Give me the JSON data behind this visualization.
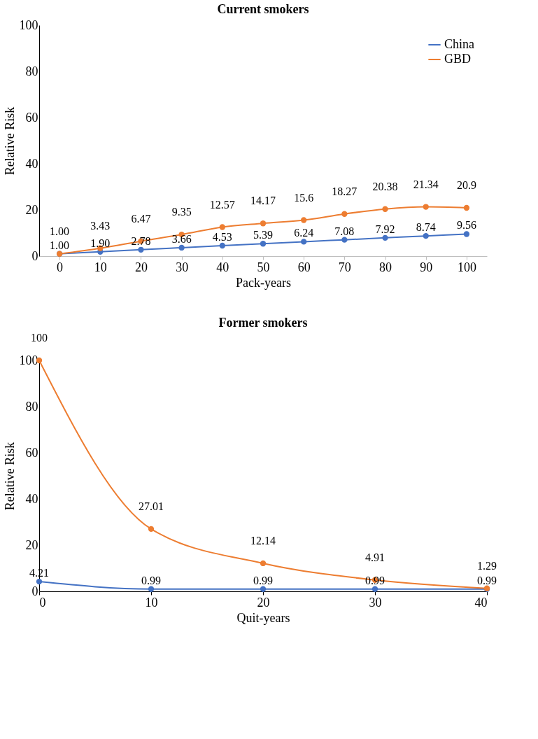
{
  "chart_data": [
    {
      "type": "line",
      "title": "Current smokers",
      "xlabel": "Pack-years",
      "ylabel": "Relative Risk",
      "categories": [
        "0",
        "10",
        "20",
        "30",
        "40",
        "50",
        "60",
        "70",
        "80",
        "90",
        "100"
      ],
      "series": [
        {
          "name": "China",
          "color": "#4472c4",
          "values": [
            1.0,
            1.9,
            2.78,
            3.66,
            4.53,
            5.39,
            6.24,
            7.08,
            7.92,
            8.74,
            9.56
          ],
          "value_labels": [
            "1.00",
            "1.90",
            "2.78",
            "3.66",
            "4.53",
            "5.39",
            "6.24",
            "7.08",
            "7.92",
            "8.74",
            "9.56"
          ]
        },
        {
          "name": "GBD",
          "color": "#ed7d31",
          "values": [
            1.0,
            3.43,
            6.47,
            9.35,
            12.57,
            14.17,
            15.6,
            18.27,
            20.38,
            21.34,
            20.9
          ],
          "value_labels": [
            "1.00",
            "3.43",
            "6.47",
            "9.35",
            "12.57",
            "14.17",
            "15.6",
            "18.27",
            "20.38",
            "21.34",
            "20.9"
          ]
        }
      ],
      "ylim": [
        0,
        100
      ],
      "yticks": [
        0,
        20,
        40,
        60,
        80,
        100
      ],
      "grid": false,
      "legend": "top right",
      "marker": "circle",
      "line_style": "solid"
    },
    {
      "type": "line",
      "title": "Former smokers",
      "xlabel": "Quit-years",
      "ylabel": "Relative Risk",
      "x": [
        0,
        10,
        20,
        30,
        40
      ],
      "series": [
        {
          "name": "China",
          "color": "#4472c4",
          "values": [
            4.21,
            0.99,
            0.99,
            0.99,
            0.99
          ],
          "value_labels": [
            "4.21",
            "0.99",
            "0.99",
            "0.99",
            "0.99"
          ]
        },
        {
          "name": "GBD",
          "color": "#ed7d31",
          "values": [
            100,
            27.01,
            12.14,
            4.91,
            1.29
          ],
          "value_labels": [
            "100",
            "27.01",
            "12.14",
            "4.91",
            "1.29"
          ]
        }
      ],
      "xlim": [
        0,
        40
      ],
      "xticks": [
        0,
        10,
        20,
        30,
        40
      ],
      "ylim": [
        0,
        100
      ],
      "yticks": [
        0,
        20,
        40,
        60,
        80,
        100
      ],
      "grid": false,
      "legend": "top right",
      "marker": "circle",
      "line_style": "solid"
    }
  ]
}
